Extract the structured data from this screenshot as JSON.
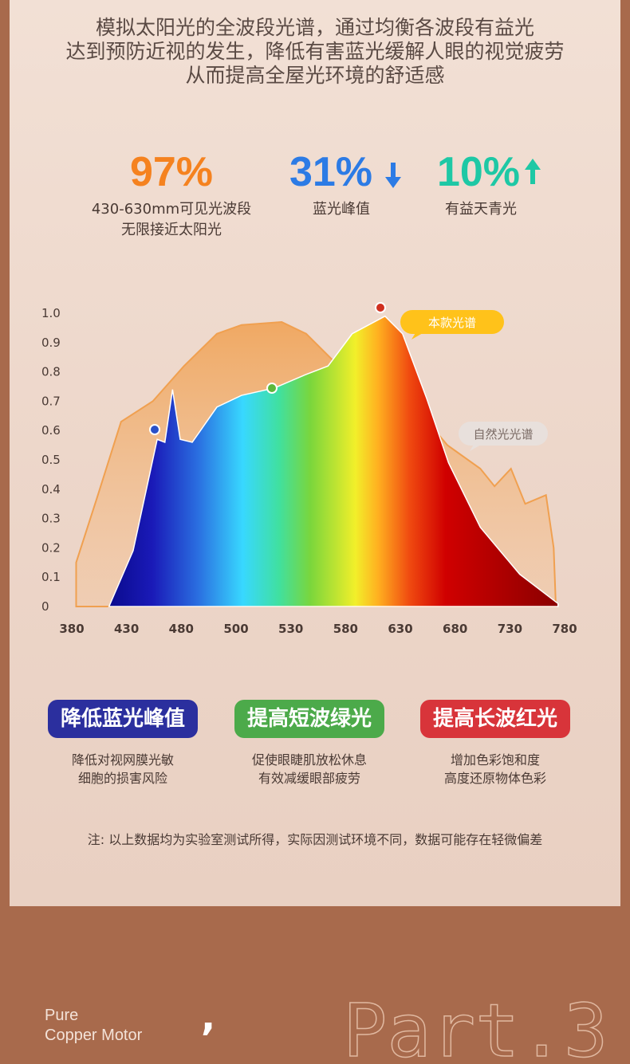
{
  "intro": [
    "模拟太阳光的全波段光谱，通过均衡各波段有益光",
    "达到预防近视的发生，降低有害蓝光缓解人眼的视觉疲劳",
    "从而提高全屋光环境的舒适感"
  ],
  "stats": [
    {
      "value": "97%",
      "label": [
        "430-630mm可见光波段",
        "无限接近太阳光"
      ]
    },
    {
      "value": "31%",
      "label": [
        "蓝光峰值"
      ]
    },
    {
      "value": "10%",
      "label": [
        "有益天青光"
      ]
    }
  ],
  "chart_data": {
    "type": "area",
    "xticks": [
      380,
      430,
      480,
      500,
      530,
      580,
      630,
      680,
      730,
      780
    ],
    "ylim": [
      0,
      1
    ],
    "yticks": [
      0,
      0.1,
      0.2,
      0.3,
      0.4,
      0.5,
      0.6,
      0.7,
      0.8,
      0.9,
      {
        "value": 1,
        "label": "1.0"
      }
    ],
    "series": [
      {
        "name": "自然光光谱",
        "color": "#f0a050",
        "x": [
          384,
          403,
          425,
          454,
          481,
          493,
          503,
          525,
          544,
          571,
          609,
          646,
          673,
          703,
          716,
          731,
          744,
          763,
          770,
          772
        ],
        "values": [
          0.15,
          0.37,
          0.63,
          0.7,
          0.82,
          0.93,
          0.96,
          0.97,
          0.93,
          0.83,
          0.72,
          0.67,
          0.55,
          0.47,
          0.41,
          0.47,
          0.35,
          0.38,
          0.2,
          0
        ]
      },
      {
        "name": "本款光谱",
        "color": "#ffc21a",
        "x": [
          414,
          436,
          458,
          465,
          472,
          479,
          484,
          493,
          503,
          521,
          543,
          564,
          586,
          616,
          632,
          654,
          674,
          703,
          739,
          774
        ],
        "values": [
          0,
          0.19,
          0.57,
          0.56,
          0.74,
          0.57,
          0.56,
          0.68,
          0.72,
          0.745,
          0.79,
          0.82,
          0.93,
          0.99,
          0.93,
          0.71,
          0.49,
          0.27,
          0.11,
          0.01
        ]
      }
    ]
  },
  "features": [
    {
      "title": "降低蓝光峰值",
      "color": "#2b2f9e",
      "text": [
        "降低对视网膜光敏",
        "细胞的损害风险"
      ]
    },
    {
      "title": "提高短波绿光",
      "color": "#4caa4a",
      "text": [
        "促使眼睫肌放松休息",
        "有效减缓眼部疲劳"
      ]
    },
    {
      "title": "提高长波红光",
      "color": "#d8343a",
      "text": [
        "增加色彩饱和度",
        "高度还原物体色彩"
      ]
    }
  ],
  "note": "注: 以上数据均为实验室测试所得，实际因测试环境不同，数据可能存在轻微偏差",
  "footer": {
    "line1": "Pure",
    "line2": "Copper Motor",
    "mark": ",",
    "part": "Part.3"
  }
}
